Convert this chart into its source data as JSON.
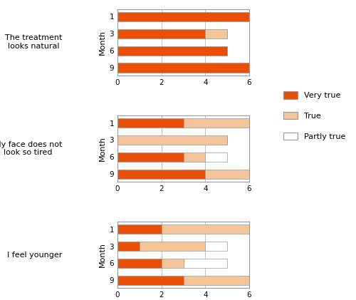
{
  "subplots": [
    {
      "label": "The treatment\nlooks natural",
      "months": [
        1,
        3,
        6,
        9
      ],
      "very_true": [
        6,
        4,
        5,
        6
      ],
      "true": [
        0,
        1,
        0,
        0
      ],
      "partly_true": [
        0,
        0,
        0,
        0
      ]
    },
    {
      "label": "My face does not\nlook so tired",
      "months": [
        1,
        3,
        6,
        9
      ],
      "very_true": [
        3,
        0,
        3,
        4
      ],
      "true": [
        3,
        5,
        1,
        2
      ],
      "partly_true": [
        0,
        0,
        1,
        0
      ]
    },
    {
      "label": "I feel younger",
      "months": [
        1,
        3,
        6,
        9
      ],
      "very_true": [
        2,
        1,
        2,
        3
      ],
      "true": [
        4,
        3,
        1,
        3
      ],
      "partly_true": [
        0,
        1,
        2,
        0
      ]
    }
  ],
  "color_very_true": "#E8500A",
  "color_true": "#F5C59A",
  "color_partly_true": "#FFFFFF",
  "ylabel": "Month",
  "xlim": [
    0,
    6
  ],
  "xticks": [
    0,
    2,
    4,
    6
  ],
  "bar_height": 0.55
}
